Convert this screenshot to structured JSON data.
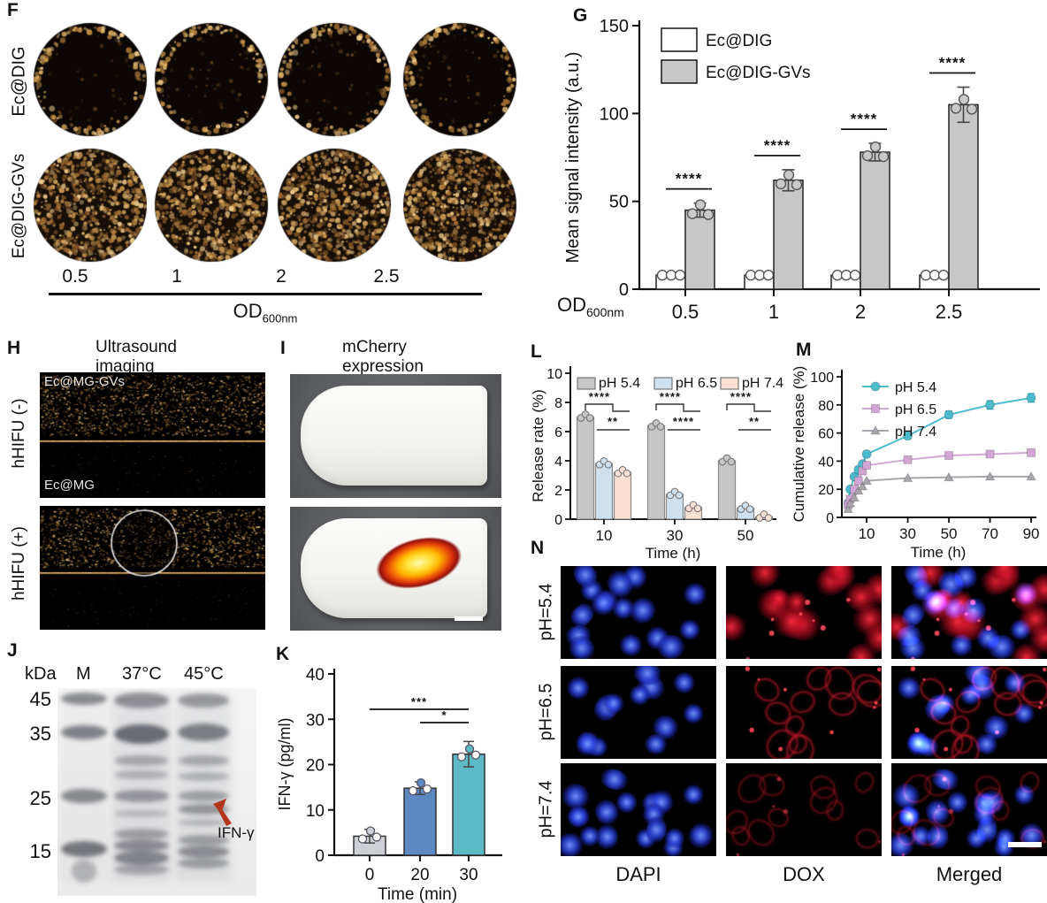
{
  "panels": {
    "F": {
      "label": "F",
      "row_labels": [
        "Ec@DIG",
        "Ec@DIG-GVs"
      ],
      "col_labels": [
        "0.5",
        "1",
        "2",
        "2.5"
      ],
      "axis_label": "OD",
      "axis_label_sub": "600nm"
    },
    "G": {
      "label": "G"
    },
    "H": {
      "label": "H",
      "title": "Ultrasound imaging",
      "row_labels": [
        "hHIFU (-)",
        "hHIFU (+)"
      ],
      "image_labels": [
        "Ec@MG-GVs",
        "Ec@MG"
      ]
    },
    "I": {
      "label": "I",
      "title": "mCherry expression"
    },
    "J": {
      "label": "J",
      "header": [
        "kDa",
        "M",
        "37°C",
        "45°C"
      ],
      "ladder": [
        "45",
        "35",
        "25",
        "15"
      ],
      "annotation": "IFN-γ"
    },
    "K": {
      "label": "K"
    },
    "L": {
      "label": "L"
    },
    "M": {
      "label": "M"
    },
    "N": {
      "label": "N",
      "row_labels": [
        "pH=5.4",
        "pH=6.5",
        "pH=7.4"
      ],
      "col_labels": [
        "DAPI",
        "DOX",
        "Merged"
      ]
    }
  },
  "chart_data": {
    "G": {
      "type": "bar",
      "categories": [
        "0.5",
        "1",
        "2",
        "2.5"
      ],
      "series": [
        {
          "name": "Ec@DIG",
          "color": "#ffffff",
          "values": [
            8,
            8,
            8,
            8
          ],
          "errors": [
            1,
            1,
            1,
            1
          ]
        },
        {
          "name": "Ec@DIG-GVs",
          "color": "#c7c7c7",
          "values": [
            45,
            62,
            78,
            105
          ],
          "errors": [
            4,
            6,
            5,
            10
          ]
        }
      ],
      "significance": [
        "****",
        "****",
        "****",
        "****"
      ],
      "xlabel": "OD",
      "xlabel_sub": "600nm",
      "ylabel": "Mean signal intensity (a.u.)",
      "ylim": [
        0,
        150
      ],
      "yticks": [
        0,
        50,
        100,
        150
      ],
      "legend_position": "top-left"
    },
    "L": {
      "type": "bar",
      "categories": [
        "10",
        "30",
        "50"
      ],
      "series": [
        {
          "name": "pH 5.4",
          "color": "#c6c6c6",
          "values": [
            7.0,
            6.4,
            4.0
          ]
        },
        {
          "name": "pH 6.5",
          "color": "#cfe0ef",
          "values": [
            3.8,
            1.7,
            0.75
          ]
        },
        {
          "name": "pH 7.4",
          "color": "#fbe0d3",
          "values": [
            3.2,
            0.8,
            0.15
          ]
        }
      ],
      "significance_top": [
        "****",
        "****",
        "****"
      ],
      "significance_bottom": [
        "**",
        "****",
        "**"
      ],
      "xlabel": "Time (h)",
      "ylabel": "Release rate (%)",
      "ylim": [
        0,
        10
      ],
      "yticks": [
        0,
        2,
        4,
        6,
        8,
        10
      ],
      "legend_position": "top"
    },
    "M": {
      "type": "line",
      "x": [
        1,
        2,
        4,
        6,
        8,
        10,
        30,
        50,
        70,
        90
      ],
      "xticks": [
        10,
        30,
        50,
        70,
        90
      ],
      "series": [
        {
          "name": "pH 5.4",
          "color": "#4bbccd",
          "marker": "circle",
          "values": [
            10,
            20,
            29,
            34,
            38,
            45,
            58,
            73,
            80,
            85
          ],
          "errors": [
            1,
            1,
            1,
            1,
            1,
            2,
            2,
            2.5,
            3,
            3
          ]
        },
        {
          "name": "pH 6.5",
          "color": "#d2a6d4",
          "marker": "square",
          "values": [
            9,
            13,
            20,
            26,
            33,
            37,
            41,
            44,
            45,
            46
          ],
          "errors": [
            0.5,
            0.5,
            0.5,
            0.5,
            0.5,
            1,
            1,
            1,
            1,
            1
          ]
        },
        {
          "name": "pH 7.4",
          "color": "#a9a6ad",
          "marker": "triangle",
          "values": [
            6,
            10,
            14,
            19,
            22,
            26,
            28,
            28.5,
            29,
            29
          ],
          "errors": [
            0.5,
            0.5,
            0.5,
            0.5,
            0.5,
            0.5,
            0.5,
            0.5,
            0.5,
            0.5
          ]
        }
      ],
      "xlabel": "Time (h)",
      "ylabel": "Cumulative release  (%)",
      "ylim": [
        0,
        100
      ],
      "yticks": [
        0,
        20,
        40,
        60,
        80,
        100
      ],
      "legend_position": "top-left"
    },
    "K": {
      "type": "bar",
      "categories": [
        "0",
        "20",
        "30"
      ],
      "values": [
        4.2,
        14.8,
        22.3
      ],
      "errors": [
        1.5,
        1.4,
        2.8
      ],
      "colors": [
        "#cdd1d5",
        "#5d89c2",
        "#5cbac6"
      ],
      "significance": [
        {
          "from": 0,
          "to": 2,
          "label": "***"
        },
        {
          "from": 1,
          "to": 2,
          "label": "*"
        }
      ],
      "xlabel": "Time (min)",
      "ylabel": "IFN-γ (pg/ml)",
      "ylim": [
        0,
        40
      ],
      "yticks": [
        0,
        10,
        20,
        30,
        40
      ]
    }
  }
}
